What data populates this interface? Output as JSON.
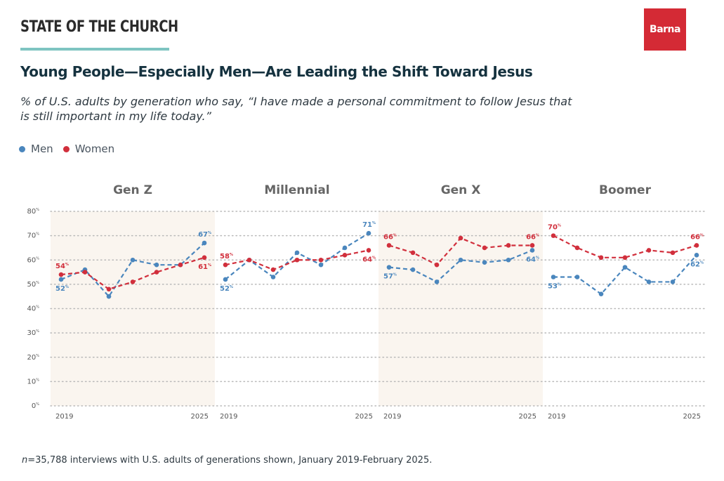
{
  "header": {
    "title": "STATE OF THE CHURCH",
    "rule_color": "#7ec4c1"
  },
  "logo": {
    "text": "Barna",
    "color": "#d42a35"
  },
  "title": "Young People—Especially Men—Are Leading the Shift Toward Jesus",
  "subtitle": "% of U.S. adults by generation who say, “I have made a personal commitment to follow Jesus that is still important in my life today.”",
  "legend": [
    {
      "label": "Men",
      "color": "#4a86bd"
    },
    {
      "label": "Women",
      "color": "#d12f3c"
    }
  ],
  "footnote": {
    "n_label": "n",
    "text": "=35,788 interviews with U.S. adults of generations shown, January 2019-February 2025."
  },
  "chart_data": {
    "type": "line",
    "ylim": [
      0,
      80
    ],
    "yticks": [
      "0%",
      "10%",
      "20%",
      "30%",
      "40%",
      "50%",
      "60%",
      "70%",
      "80%"
    ],
    "x_start_label": "2019",
    "x_end_label": "2025",
    "grid": true,
    "legend_placement": "top-left",
    "panels": [
      {
        "name": "Gen Z",
        "shaded": true,
        "series": [
          {
            "name": "Men",
            "values": [
              52,
              56,
              45,
              60,
              58,
              58,
              67
            ],
            "start_label": "52%",
            "end_label": "67%"
          },
          {
            "name": "Women",
            "values": [
              54,
              55,
              48,
              51,
              55,
              58,
              61
            ],
            "start_label": "54%",
            "end_label": "61%"
          }
        ]
      },
      {
        "name": "Millennial",
        "shaded": false,
        "series": [
          {
            "name": "Men",
            "values": [
              52,
              60,
              53,
              63,
              58,
              65,
              71
            ],
            "start_label": "52%",
            "end_label": "71%"
          },
          {
            "name": "Women",
            "values": [
              58,
              60,
              56,
              60,
              60,
              62,
              64
            ],
            "start_label": "58%",
            "end_label": "64%"
          }
        ]
      },
      {
        "name": "Gen X",
        "shaded": true,
        "series": [
          {
            "name": "Men",
            "values": [
              57,
              56,
              51,
              60,
              59,
              60,
              64
            ],
            "start_label": "57%",
            "end_label": "64%"
          },
          {
            "name": "Women",
            "values": [
              66,
              63,
              58,
              69,
              65,
              66,
              66
            ],
            "start_label": "66%",
            "end_label": "66%"
          }
        ]
      },
      {
        "name": "Boomer",
        "shaded": false,
        "series": [
          {
            "name": "Men",
            "values": [
              53,
              53,
              46,
              57,
              51,
              51,
              62
            ],
            "start_label": "53%",
            "end_label": "62%"
          },
          {
            "name": "Women",
            "values": [
              70,
              65,
              61,
              61,
              64,
              63,
              66
            ],
            "start_label": "70%",
            "end_label": "66%"
          }
        ]
      }
    ]
  }
}
